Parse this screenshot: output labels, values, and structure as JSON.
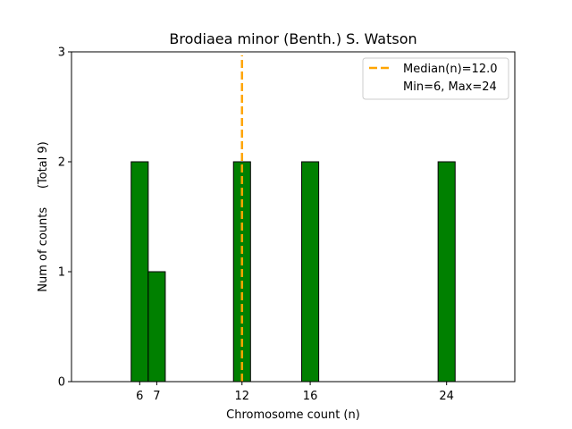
{
  "chart_data": {
    "type": "bar",
    "title": "Brodiaea minor (Benth.) S. Watson",
    "xlabel": "Chromosome count (n)",
    "ylabel": "Num of counts     (Total 9)",
    "xlim": [
      2,
      28
    ],
    "ylim": [
      0,
      3
    ],
    "x_ticks": [
      6,
      7,
      12,
      16,
      24
    ],
    "y_ticks": [
      0,
      1,
      2,
      3
    ],
    "bins": [
      {
        "x": 6,
        "count": 2
      },
      {
        "x": 7,
        "count": 1
      },
      {
        "x": 12,
        "count": 2
      },
      {
        "x": 16,
        "count": 2
      },
      {
        "x": 24,
        "count": 2
      }
    ],
    "bar_color": "#008000",
    "median": 12.0,
    "median_color": "#FFA500",
    "legend": {
      "placement": "top-right",
      "entries": [
        "Median(n)=12.0",
        "Min=6, Max=24"
      ]
    }
  }
}
